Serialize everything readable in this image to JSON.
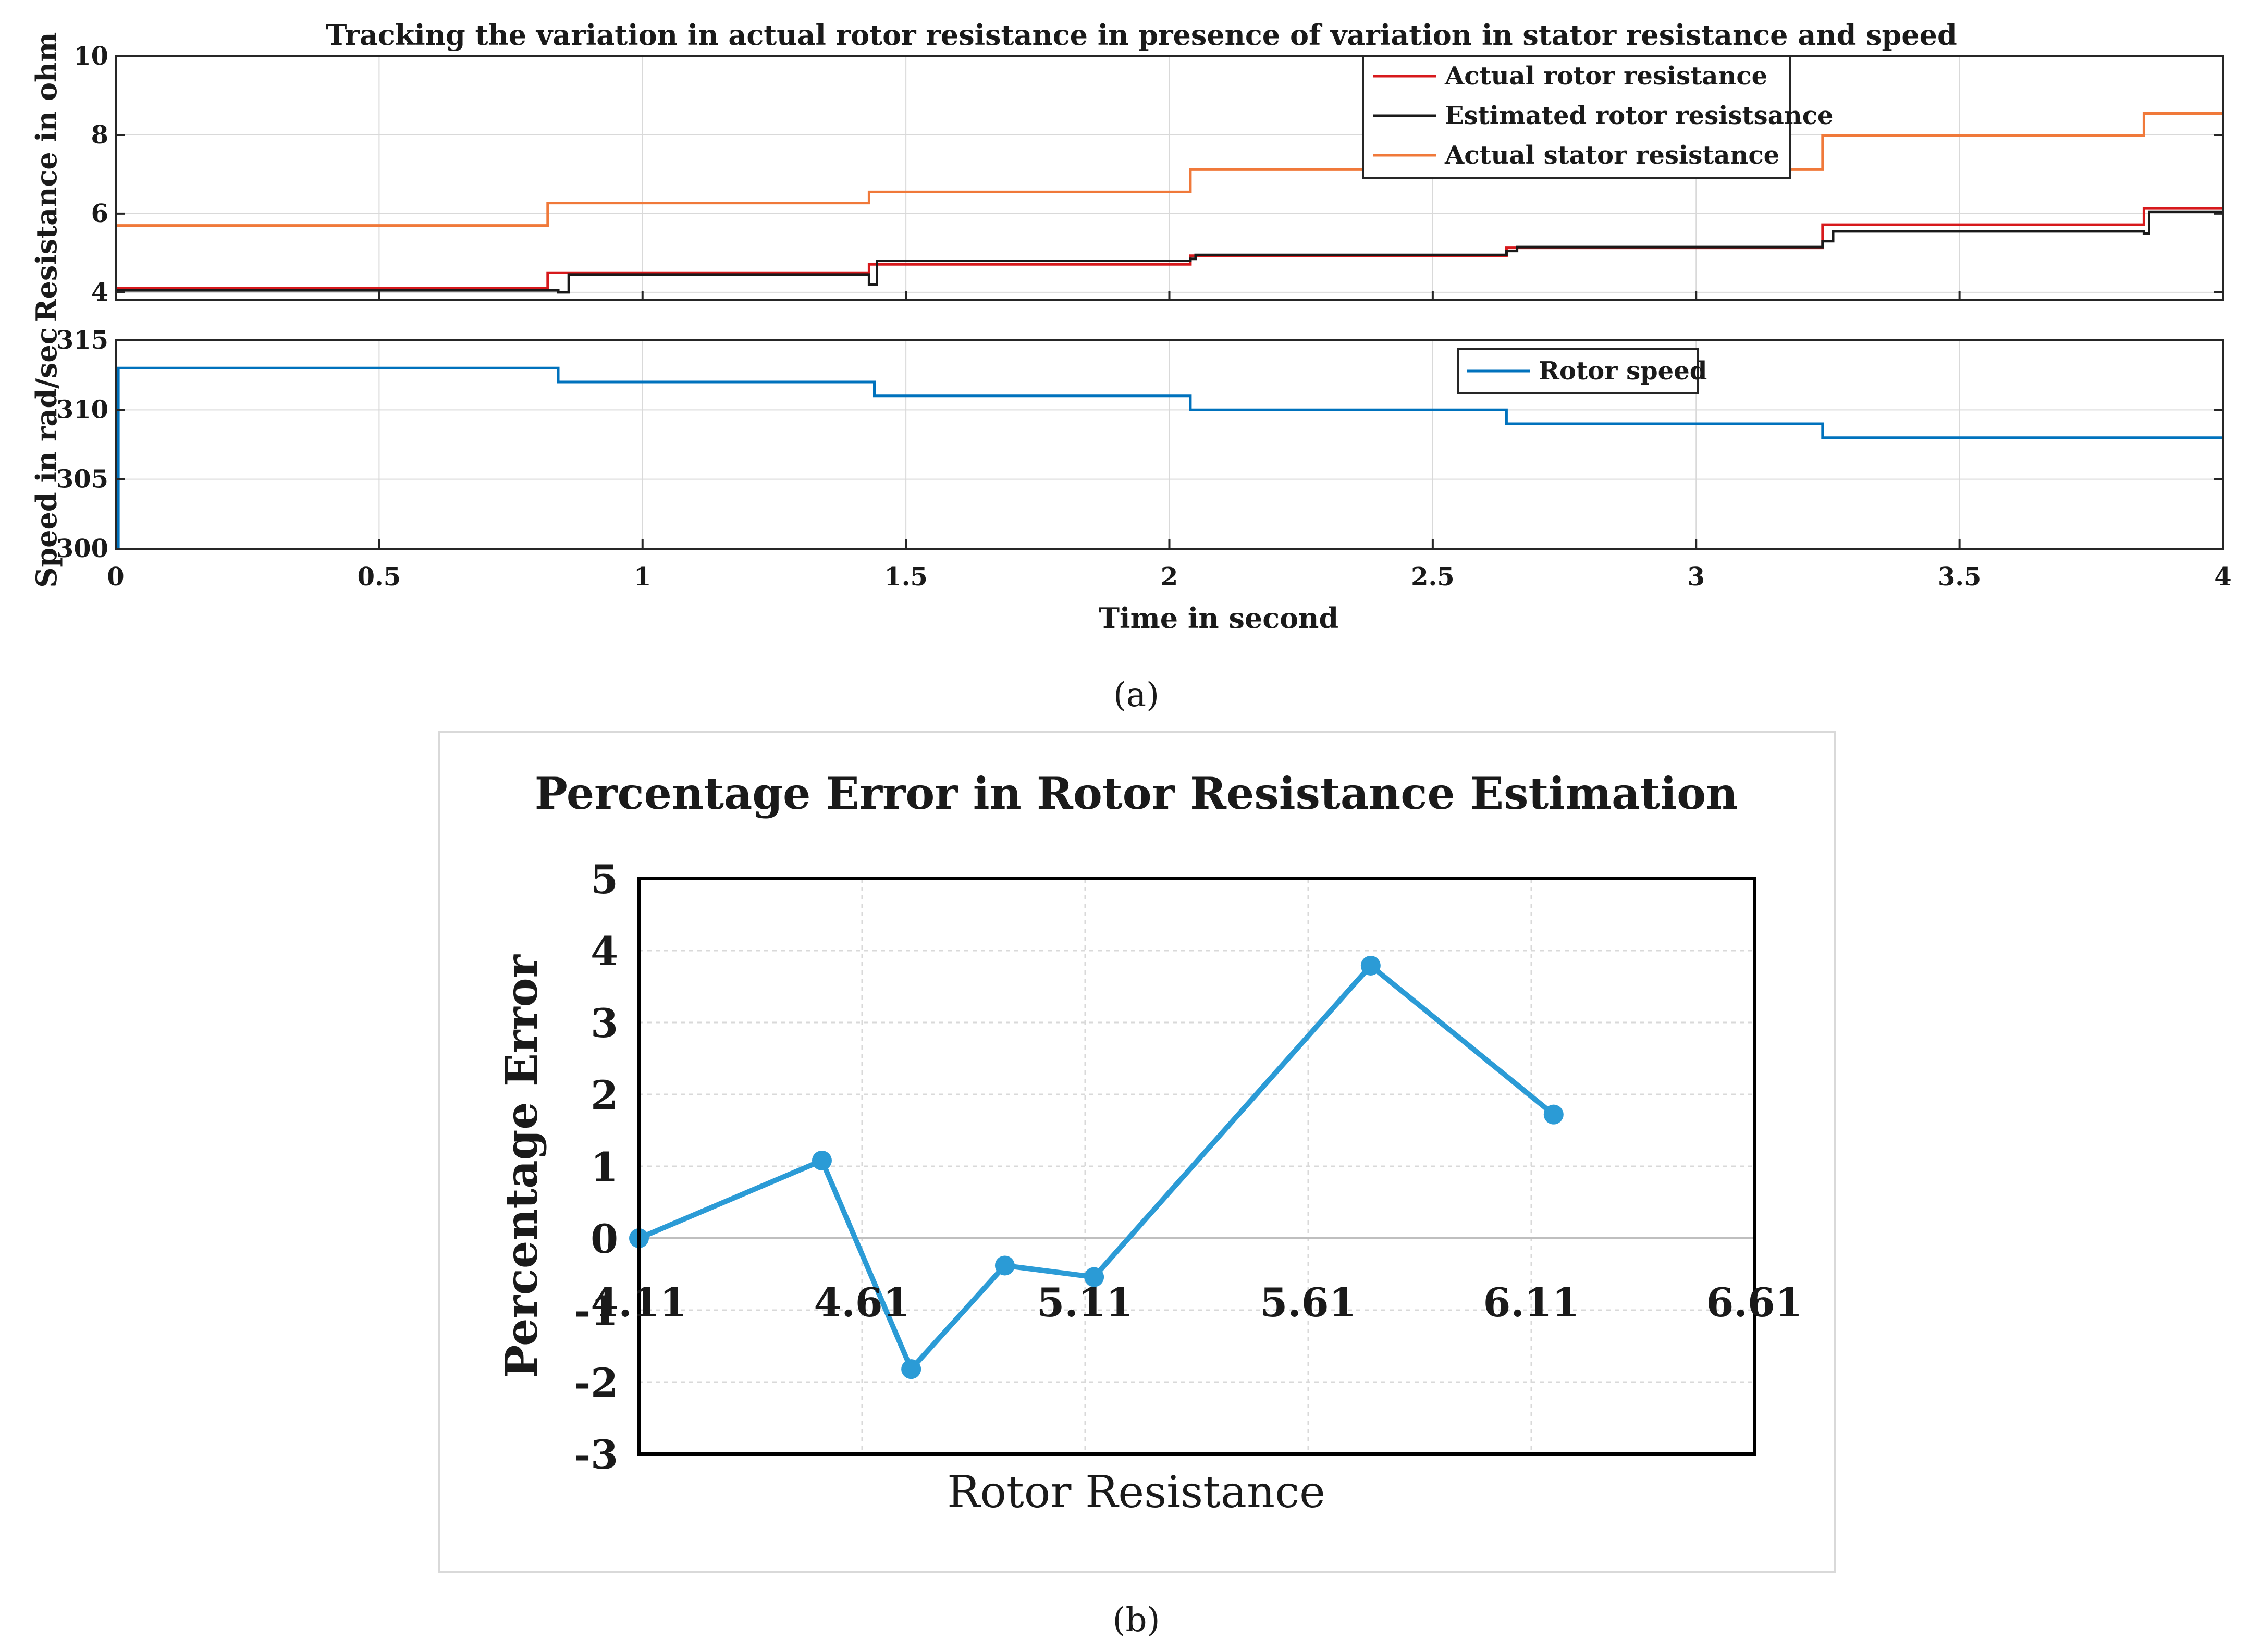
{
  "figure": {
    "label_a": "(a)",
    "label_b": "(b)"
  },
  "chart_data": [
    {
      "type": "line",
      "title": "Tracking the variation in actual rotor resistance in presence of variation in stator resistance and speed",
      "xlabel": "",
      "ylabel": "Resistance in ohm",
      "xlim": [
        0,
        4
      ],
      "ylim": [
        3.8,
        10
      ],
      "yticks": [
        4,
        6,
        8,
        10
      ],
      "grid": true,
      "legend_position": "top-right",
      "legend": [
        "Actual rotor resistance",
        "Estimated rotor resistsance",
        "Actual stator resistance"
      ],
      "series": [
        {
          "name": "Actual rotor resistance",
          "color": "#d7191c",
          "x": [
            0,
            0.82,
            0.82,
            1.43,
            1.43,
            2.04,
            2.04,
            2.64,
            2.64,
            3.24,
            3.24,
            3.85,
            3.85,
            4.0
          ],
          "y": [
            4.1,
            4.1,
            4.5,
            4.5,
            4.71,
            4.71,
            4.93,
            4.93,
            5.13,
            5.13,
            5.72,
            5.72,
            6.13,
            6.13
          ]
        },
        {
          "name": "Estimated rotor resistsance",
          "color": "#1a1a1a",
          "x": [
            0,
            0.84,
            0.84,
            0.86,
            0.86,
            1.43,
            1.43,
            1.445,
            1.445,
            2.04,
            2.04,
            2.05,
            2.05,
            2.64,
            2.64,
            2.66,
            2.66,
            3.24,
            3.24,
            3.26,
            3.26,
            3.85,
            3.85,
            3.86,
            3.86,
            4.0
          ],
          "y": [
            4.05,
            4.05,
            4.0,
            4.0,
            4.45,
            4.45,
            4.2,
            4.2,
            4.8,
            4.8,
            4.85,
            4.85,
            4.95,
            4.95,
            5.05,
            5.05,
            5.15,
            5.15,
            5.3,
            5.3,
            5.55,
            5.55,
            5.5,
            5.5,
            6.05,
            6.05
          ]
        },
        {
          "name": "Actual stator resistance",
          "color": "#f0793a",
          "x": [
            0,
            0.82,
            0.82,
            1.43,
            1.43,
            2.04,
            2.04,
            3.24,
            3.24,
            3.85,
            3.85,
            4.0
          ],
          "y": [
            5.7,
            5.7,
            6.27,
            6.27,
            6.55,
            6.55,
            7.12,
            7.12,
            7.98,
            7.98,
            8.55,
            8.55
          ]
        }
      ]
    },
    {
      "type": "line",
      "title": "",
      "xlabel": "Time in second",
      "ylabel": "Speed in rad/sec",
      "xlim": [
        0,
        4
      ],
      "ylim": [
        300,
        315
      ],
      "xticks": [
        0,
        0.5,
        1,
        1.5,
        2,
        2.5,
        3,
        3.5,
        4
      ],
      "xtick_labels": [
        "0",
        "0.5",
        "1",
        "1.5",
        "2",
        "2.5",
        "3",
        "3.5",
        "4"
      ],
      "yticks": [
        300,
        305,
        310,
        315
      ],
      "grid": true,
      "legend_position": "top-right",
      "legend": [
        "Rotor speed"
      ],
      "series": [
        {
          "name": "Rotor speed",
          "color": "#0072bd",
          "x": [
            0,
            0.005,
            0.005,
            0.84,
            0.84,
            1.44,
            1.44,
            2.04,
            2.04,
            2.64,
            2.64,
            3.24,
            3.24,
            4.0
          ],
          "y": [
            300,
            300,
            313,
            313,
            312,
            312,
            311,
            311,
            310,
            310,
            309,
            309,
            308,
            308
          ]
        }
      ]
    },
    {
      "type": "line",
      "title": "Percentage Error in Rotor Resistance Estimation",
      "xlabel": "Rotor Resistance",
      "ylabel": "Percentage Error",
      "xlim": [
        4.11,
        6.61
      ],
      "ylim": [
        -3,
        5
      ],
      "xticks": [
        4.11,
        4.61,
        5.11,
        5.61,
        6.11,
        6.61
      ],
      "xtick_labels": [
        "4.11",
        "4.61",
        "5.11",
        "5.61",
        "6.11",
        "6.61"
      ],
      "yticks": [
        -3,
        -2,
        -1,
        0,
        1,
        2,
        3,
        4,
        5
      ],
      "grid": true,
      "series": [
        {
          "name": "Percentage Error",
          "color": "#2b9bd6",
          "x": [
            4.11,
            4.52,
            4.72,
            4.93,
            5.13,
            5.75,
            6.16
          ],
          "y": [
            0.0,
            1.08,
            -1.82,
            -0.38,
            -0.54,
            3.79,
            1.72
          ]
        }
      ]
    }
  ]
}
